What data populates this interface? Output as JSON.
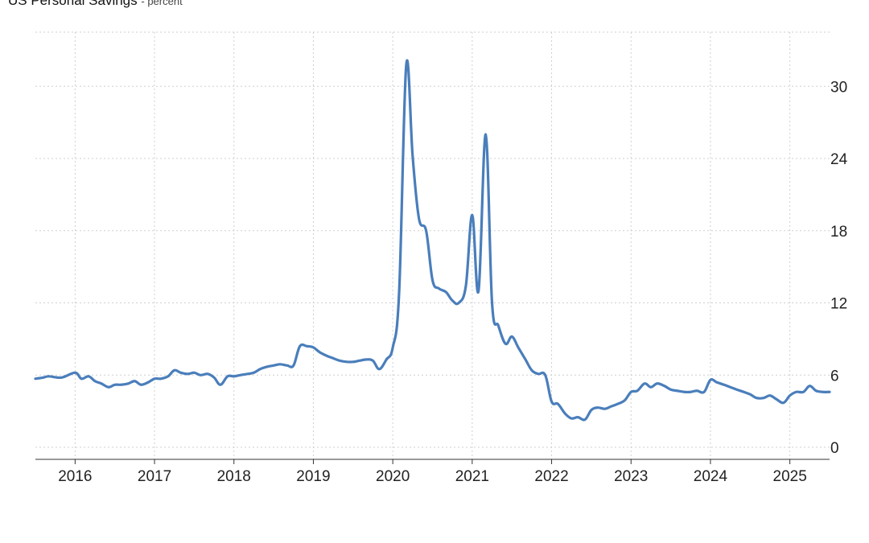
{
  "title": "US Personal Savings",
  "unit": "percent",
  "colors": {
    "line": "#4a7ebb",
    "grid": "#cfcfcf",
    "axis": "#333333",
    "text": "#222222"
  },
  "chart_data": {
    "type": "line",
    "title": "US Personal Savings",
    "unit": "percent",
    "xlabel": "",
    "ylabel": "",
    "x_ticks": [
      "2016",
      "2017",
      "2018",
      "2019",
      "2020",
      "2021",
      "2022",
      "2023",
      "2024",
      "2025"
    ],
    "y_ticks": [
      0,
      6,
      12,
      18,
      24,
      30
    ],
    "ylim": [
      -1,
      34.5
    ],
    "xlim": [
      2015.5,
      2025.5
    ],
    "grid": true,
    "y_axis_side": "right",
    "series": [
      {
        "x": [
          2015.5,
          2015.6,
          2015.67,
          2015.83,
          2016.0,
          2016.08,
          2016.17,
          2016.25,
          2016.33,
          2016.42,
          2016.5,
          2016.58,
          2016.67,
          2016.75,
          2016.83,
          2016.92,
          2017.0,
          2017.08,
          2017.17,
          2017.25,
          2017.33,
          2017.42,
          2017.5,
          2017.58,
          2017.67,
          2017.75,
          2017.83,
          2017.92,
          2018.0,
          2018.08,
          2018.17,
          2018.25,
          2018.33,
          2018.42,
          2018.5,
          2018.58,
          2018.67,
          2018.75,
          2018.83,
          2018.92,
          2019.0,
          2019.08,
          2019.17,
          2019.25,
          2019.33,
          2019.42,
          2019.5,
          2019.58,
          2019.67,
          2019.75,
          2019.83,
          2019.92,
          2020.0,
          2020.08,
          2020.17,
          2020.25,
          2020.33,
          2020.42,
          2020.5,
          2020.58,
          2020.67,
          2020.75,
          2020.83,
          2020.92,
          2021.0,
          2021.08,
          2021.17,
          2021.25,
          2021.33,
          2021.42,
          2021.5,
          2021.58,
          2021.67,
          2021.75,
          2021.83,
          2021.92,
          2022.0,
          2022.08,
          2022.17,
          2022.25,
          2022.33,
          2022.42,
          2022.5,
          2022.58,
          2022.67,
          2022.75,
          2022.83,
          2022.92,
          2023.0,
          2023.08,
          2023.17,
          2023.25,
          2023.33,
          2023.42,
          2023.5,
          2023.58,
          2023.67,
          2023.75,
          2023.83,
          2023.92,
          2024.0,
          2024.08,
          2024.17,
          2024.25,
          2024.33,
          2024.42,
          2024.5,
          2024.58,
          2024.67,
          2024.75,
          2024.83,
          2024.92,
          2025.0,
          2025.08,
          2025.17,
          2025.25,
          2025.33,
          2025.42,
          2025.5
        ],
        "values": [
          5.7,
          5.8,
          5.9,
          5.8,
          6.2,
          5.7,
          5.9,
          5.5,
          5.3,
          5.0,
          5.2,
          5.2,
          5.3,
          5.5,
          5.2,
          5.4,
          5.7,
          5.7,
          5.9,
          6.4,
          6.2,
          6.1,
          6.2,
          6.0,
          6.1,
          5.8,
          5.2,
          5.9,
          5.9,
          6.0,
          6.1,
          6.2,
          6.5,
          6.7,
          6.8,
          6.9,
          6.8,
          6.8,
          8.4,
          8.4,
          8.3,
          7.9,
          7.6,
          7.4,
          7.2,
          7.1,
          7.1,
          7.2,
          7.3,
          7.2,
          6.5,
          7.3,
          8.3,
          12.9,
          31.8,
          24.2,
          19.0,
          18.0,
          13.9,
          13.2,
          12.9,
          12.2,
          12.0,
          13.4,
          19.3,
          13.0,
          26.0,
          12.0,
          10.1,
          8.6,
          9.2,
          8.3,
          7.3,
          6.4,
          6.1,
          6.0,
          3.8,
          3.6,
          2.8,
          2.4,
          2.5,
          2.3,
          3.1,
          3.3,
          3.2,
          3.4,
          3.6,
          3.9,
          4.6,
          4.7,
          5.3,
          5.0,
          5.3,
          5.1,
          4.8,
          4.7,
          4.6,
          4.6,
          4.7,
          4.6,
          5.6,
          5.4,
          5.2,
          5.0,
          4.8,
          4.6,
          4.4,
          4.1,
          4.1,
          4.3,
          4.0,
          3.7,
          4.3,
          4.6,
          4.6,
          5.1,
          4.7,
          4.6,
          4.6
        ]
      }
    ]
  }
}
